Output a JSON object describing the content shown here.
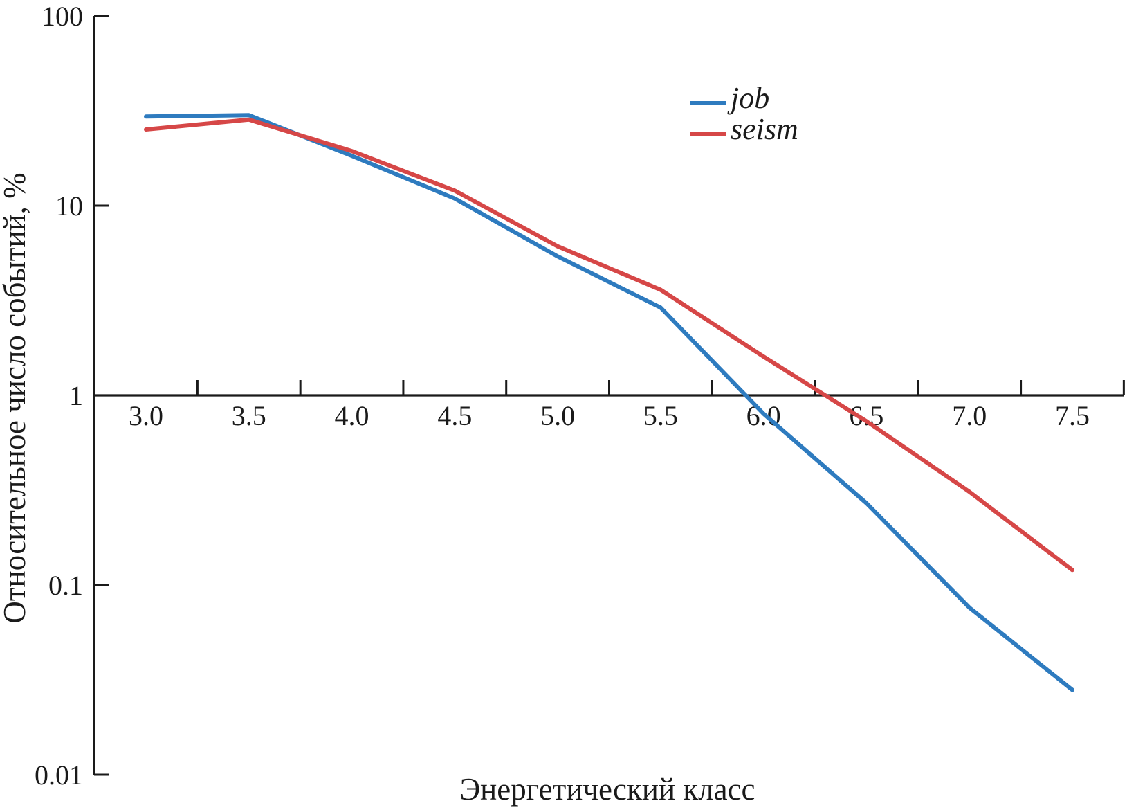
{
  "chart_data": {
    "type": "line",
    "title": "",
    "xlabel": "Энергетический класс",
    "ylabel": "Относительное число событий, %",
    "x": [
      3.0,
      3.5,
      4.0,
      4.5,
      5.0,
      5.5,
      6.0,
      6.5,
      7.0,
      7.5
    ],
    "x_tick_labels": [
      "3.0",
      "3.5",
      "4.0",
      "4.5",
      "5.0",
      "5.5",
      "6.0",
      "6.5",
      "7.0",
      "7.5"
    ],
    "y_scale": "log",
    "ylim": [
      0.01,
      100
    ],
    "y_ticks": [
      100,
      10,
      1,
      0.1,
      0.01
    ],
    "y_tick_labels": [
      "100",
      "10",
      "1",
      "0.1",
      "0.01"
    ],
    "grid": false,
    "legend_position": "upper-right",
    "series": [
      {
        "name": "job",
        "color": "#2e7bbf",
        "values": [
          29.5,
          30,
          18.3,
          10.9,
          5.4,
          2.9,
          0.8,
          0.27,
          0.076,
          0.028
        ]
      },
      {
        "name": "seism",
        "color": "#d64747",
        "values": [
          25.2,
          28.4,
          19.4,
          12.0,
          6.1,
          3.6,
          1.6,
          0.73,
          0.31,
          0.12
        ]
      }
    ]
  },
  "colors": {
    "axis": "#1a1a1a",
    "background": "#ffffff"
  }
}
